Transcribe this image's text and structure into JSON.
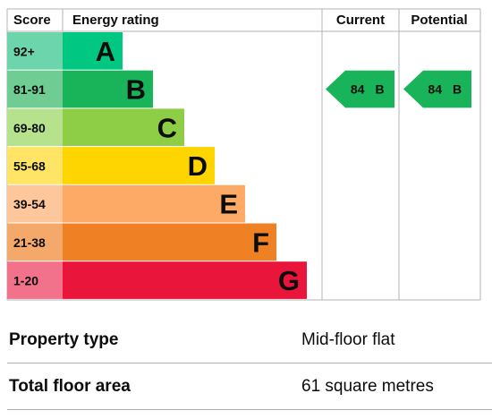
{
  "headers": {
    "score": "Score",
    "rating": "Energy rating",
    "current": "Current",
    "potential": "Potential"
  },
  "bands": [
    {
      "score": "92+",
      "letter": "A",
      "color": "#00c781",
      "score_bg": "#6dd5ac"
    },
    {
      "score": "81-91",
      "letter": "B",
      "color": "#19b459",
      "score_bg": "#6fcc93"
    },
    {
      "score": "69-80",
      "letter": "C",
      "color": "#8dce46",
      "score_bg": "#b7e28d"
    },
    {
      "score": "55-68",
      "letter": "D",
      "color": "#ffd500",
      "score_bg": "#ffe466"
    },
    {
      "score": "39-54",
      "letter": "E",
      "color": "#fcaa65",
      "score_bg": "#fdc79b"
    },
    {
      "score": "21-38",
      "letter": "F",
      "color": "#ef8023",
      "score_bg": "#f4a96a"
    },
    {
      "score": "1-20",
      "letter": "G",
      "color": "#e9153b",
      "score_bg": "#f1728a"
    }
  ],
  "current": {
    "value": "84",
    "letter": "B",
    "color": "#19b459"
  },
  "potential": {
    "value": "84",
    "letter": "B",
    "color": "#19b459"
  },
  "property": {
    "type_label": "Property type",
    "type_value": "Mid-floor flat",
    "area_label": "Total floor area",
    "area_value": "61 square metres"
  }
}
